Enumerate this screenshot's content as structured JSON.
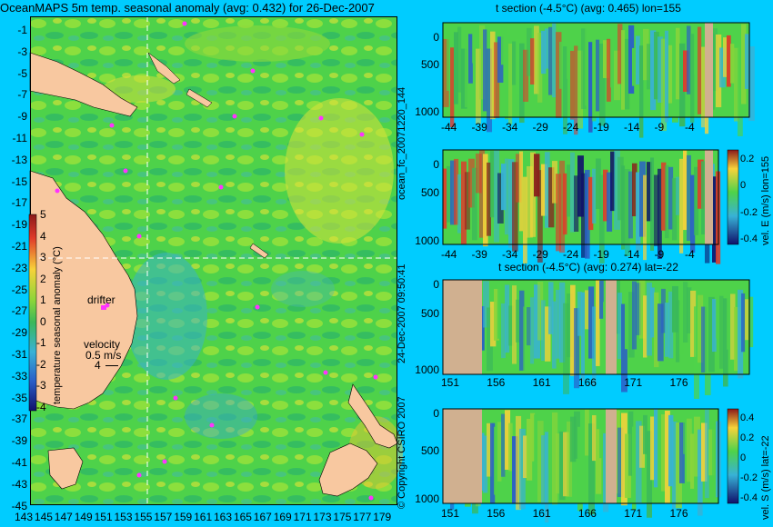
{
  "map": {
    "title": "OceanMAPS 5m temp. seasonal anomaly (avg: 0.432) for 26-Dec-2007",
    "lat_labels": [
      "-1",
      "-3",
      "-5",
      "-7",
      "-9",
      "-11",
      "-13",
      "-15",
      "-17",
      "-19",
      "-21",
      "-23",
      "-25",
      "-27",
      "-29",
      "-31",
      "-33",
      "-35",
      "-37",
      "-39",
      "-41",
      "-43",
      "-45"
    ],
    "lon_labels": [
      "143",
      "145",
      "147",
      "149",
      "151",
      "153",
      "155",
      "157",
      "159",
      "161",
      "163",
      "165",
      "167",
      "169",
      "171",
      "173",
      "175",
      "177",
      "179"
    ],
    "colorbar_label": "temperature seasonal anomaly (°C)",
    "colorbar_ticks": [
      "5",
      "4",
      "3",
      "2",
      "1",
      "0",
      "-1",
      "-2",
      "-3",
      "-4"
    ],
    "drifter_label": "drifter",
    "velocity_label": "velocity",
    "velocity_value": "0.5 m/s",
    "velocity_scale": "4",
    "section_lon": 155,
    "section_lat": -22
  },
  "vertical_labels": {
    "left_top": "ocean_fc_20071220_144",
    "left_mid": "24-Dec-2007 09:50:41",
    "left_bottom": "© Copyright CSIRO 2007"
  },
  "panels": [
    {
      "title": "t section (-4.5°C) (avg: 0.465) lon=155",
      "x_labels": [
        "-44",
        "-39",
        "-34",
        "-29",
        "-24",
        "-19",
        "-14",
        "-9",
        "-4"
      ],
      "y_labels": [
        "0",
        "500",
        "1000"
      ],
      "side_label": ""
    },
    {
      "title": "",
      "x_labels": [
        "-44",
        "-39",
        "-34",
        "-29",
        "-24",
        "-19",
        "-14",
        "-9",
        "-4"
      ],
      "y_labels": [
        "0",
        "500",
        "1000"
      ],
      "side_label": "vel. E (m/s) lon=155",
      "cb_ticks": [
        "0.2",
        "0",
        "-0.2",
        "-0.4"
      ]
    },
    {
      "title": "t section (-4.5°C) (avg: 0.274) lat=-22",
      "x_labels": [
        "151",
        "156",
        "161",
        "166",
        "171",
        "176"
      ],
      "y_labels": [
        "0",
        "500",
        "1000"
      ],
      "side_label": ""
    },
    {
      "title": "",
      "x_labels": [
        "151",
        "156",
        "161",
        "166",
        "171",
        "176"
      ],
      "y_labels": [
        "0",
        "500",
        "1000"
      ],
      "side_label": "vel. S (m/s) lat=-22",
      "cb_ticks": [
        "0.4",
        "0.2",
        "0",
        "-0.2",
        "-0.4"
      ]
    }
  ],
  "chart_data": [
    {
      "type": "heatmap",
      "title": "OceanMAPS 5m temp. seasonal anomaly (avg: 0.432) for 26-Dec-2007",
      "xlabel": "",
      "ylabel": "",
      "x_ticks": [
        143,
        145,
        147,
        149,
        151,
        153,
        155,
        157,
        159,
        161,
        163,
        165,
        167,
        169,
        171,
        173,
        175,
        177,
        179
      ],
      "y_ticks": [
        -1,
        -3,
        -5,
        -7,
        -9,
        -11,
        -13,
        -15,
        -17,
        -19,
        -21,
        -23,
        -25,
        -27,
        -29,
        -31,
        -33,
        -35,
        -37,
        -39,
        -41,
        -43,
        -45
      ],
      "xlim": [
        142,
        180
      ],
      "ylim": [
        -45,
        0
      ],
      "colorbar": {
        "label": "temperature seasonal anomaly (°C)",
        "range": [
          -4,
          5
        ]
      },
      "average": 0.432
    },
    {
      "type": "heatmap",
      "title": "t section (-4.5°C) (avg: 0.465) lon=155",
      "x_ticks": [
        -44,
        -39,
        -34,
        -29,
        -24,
        -19,
        -14,
        -9,
        -4
      ],
      "y_ticks": [
        0,
        500,
        1000
      ],
      "xlim": [
        -45,
        -1
      ],
      "ylim": [
        1000,
        0
      ],
      "average": 0.465
    },
    {
      "type": "heatmap",
      "title": "",
      "x_ticks": [
        -44,
        -39,
        -34,
        -29,
        -24,
        -19,
        -14,
        -9,
        -4
      ],
      "y_ticks": [
        0,
        500,
        1000
      ],
      "colorbar": {
        "label": "vel. E (m/s) lon=155",
        "range": [
          -0.4,
          0.4
        ]
      }
    },
    {
      "type": "heatmap",
      "title": "t section (-4.5°C) (avg: 0.274) lat=-22",
      "x_ticks": [
        151,
        156,
        161,
        166,
        171,
        176
      ],
      "y_ticks": [
        0,
        500,
        1000
      ],
      "xlim": [
        147,
        180
      ],
      "ylim": [
        1000,
        0
      ],
      "average": 0.274
    },
    {
      "type": "heatmap",
      "title": "",
      "x_ticks": [
        151,
        156,
        161,
        166,
        171,
        176
      ],
      "y_ticks": [
        0,
        500,
        1000
      ],
      "colorbar": {
        "label": "vel. S (m/s) lat=-22",
        "range": [
          -0.4,
          0.4
        ]
      }
    }
  ]
}
